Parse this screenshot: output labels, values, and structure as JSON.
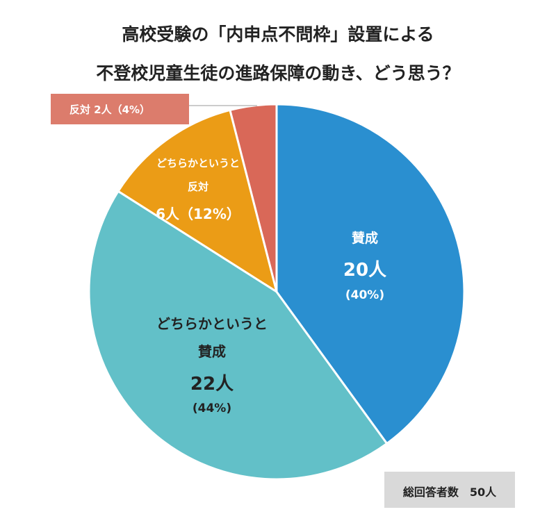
{
  "chart_data": {
    "type": "pie",
    "title_line1": "高校受験の「内申点不問枠」設置による",
    "title_line2": "不登校児童生徒の進路保障の動き、どう思う？",
    "slices": [
      {
        "name": "賛成",
        "name_line1": "賛成",
        "name_line2": "",
        "count_label": "20人",
        "pct_label": "(40%)",
        "count": 20,
        "percent": 40,
        "color": "#2a8fd0"
      },
      {
        "name": "どちらかというと賛成",
        "name_line1": "どちらかというと",
        "name_line2": "賛成",
        "count_label": "22人",
        "pct_label": "(44%)",
        "count": 22,
        "percent": 44,
        "color": "#62c0c8"
      },
      {
        "name": "どちらかというと反対",
        "name_line1": "どちらかというと",
        "name_line2": "反対",
        "count_label": "6人（12%）",
        "pct_label": "",
        "count": 6,
        "percent": 12,
        "color": "#eb9c16"
      },
      {
        "name": "反対",
        "name_line1": "反対 2人（4%）",
        "name_line2": "",
        "count_label": "",
        "pct_label": "",
        "count": 2,
        "percent": 4,
        "color": "#d96858"
      }
    ],
    "total_label": "総回答者数　50人",
    "total": 50
  }
}
